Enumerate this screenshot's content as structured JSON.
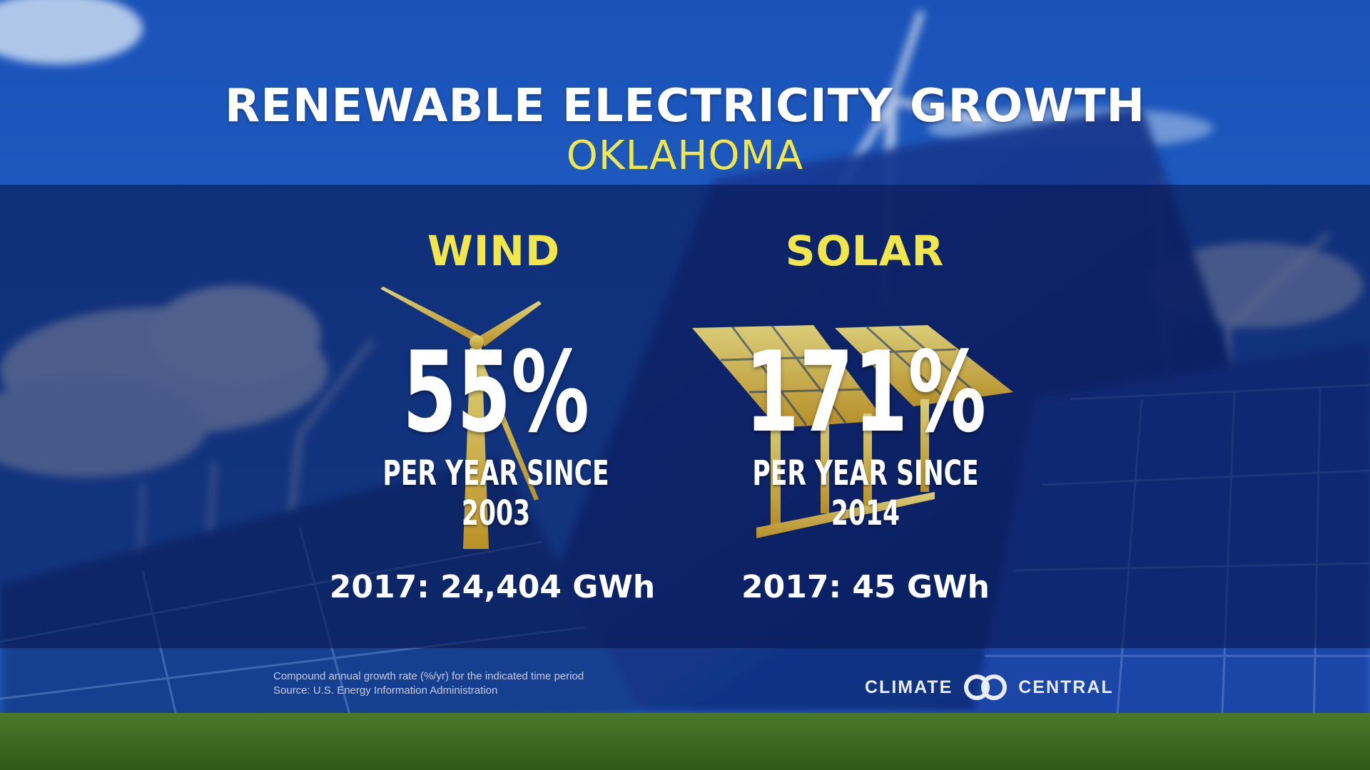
{
  "header": {
    "title": "RENEWABLE ELECTRICITY GROWTH",
    "subtitle": "OKLAHOMA"
  },
  "wind": {
    "label": "WIND",
    "growth": "55%",
    "period": "PER YEAR SINCE 2003",
    "generation": "2017: 24,404 GWh",
    "icon": "wind-turbine-icon"
  },
  "solar": {
    "label": "SOLAR",
    "growth": "171%",
    "period": "PER YEAR SINCE 2014",
    "generation": "2017: 45 GWh",
    "icon": "solar-panel-icon"
  },
  "footer": {
    "note": "Compound annual growth rate (%/yr) for the indicated time period",
    "source": "Source: U.S. Energy  Information Administration",
    "logo_left": "CLIMATE",
    "logo_right": "CENTRAL"
  },
  "colors": {
    "accent_yellow": "#f2e74a",
    "band_navy": "#081650",
    "text_white": "#ffffff",
    "icon_gold": "#c9a227"
  }
}
